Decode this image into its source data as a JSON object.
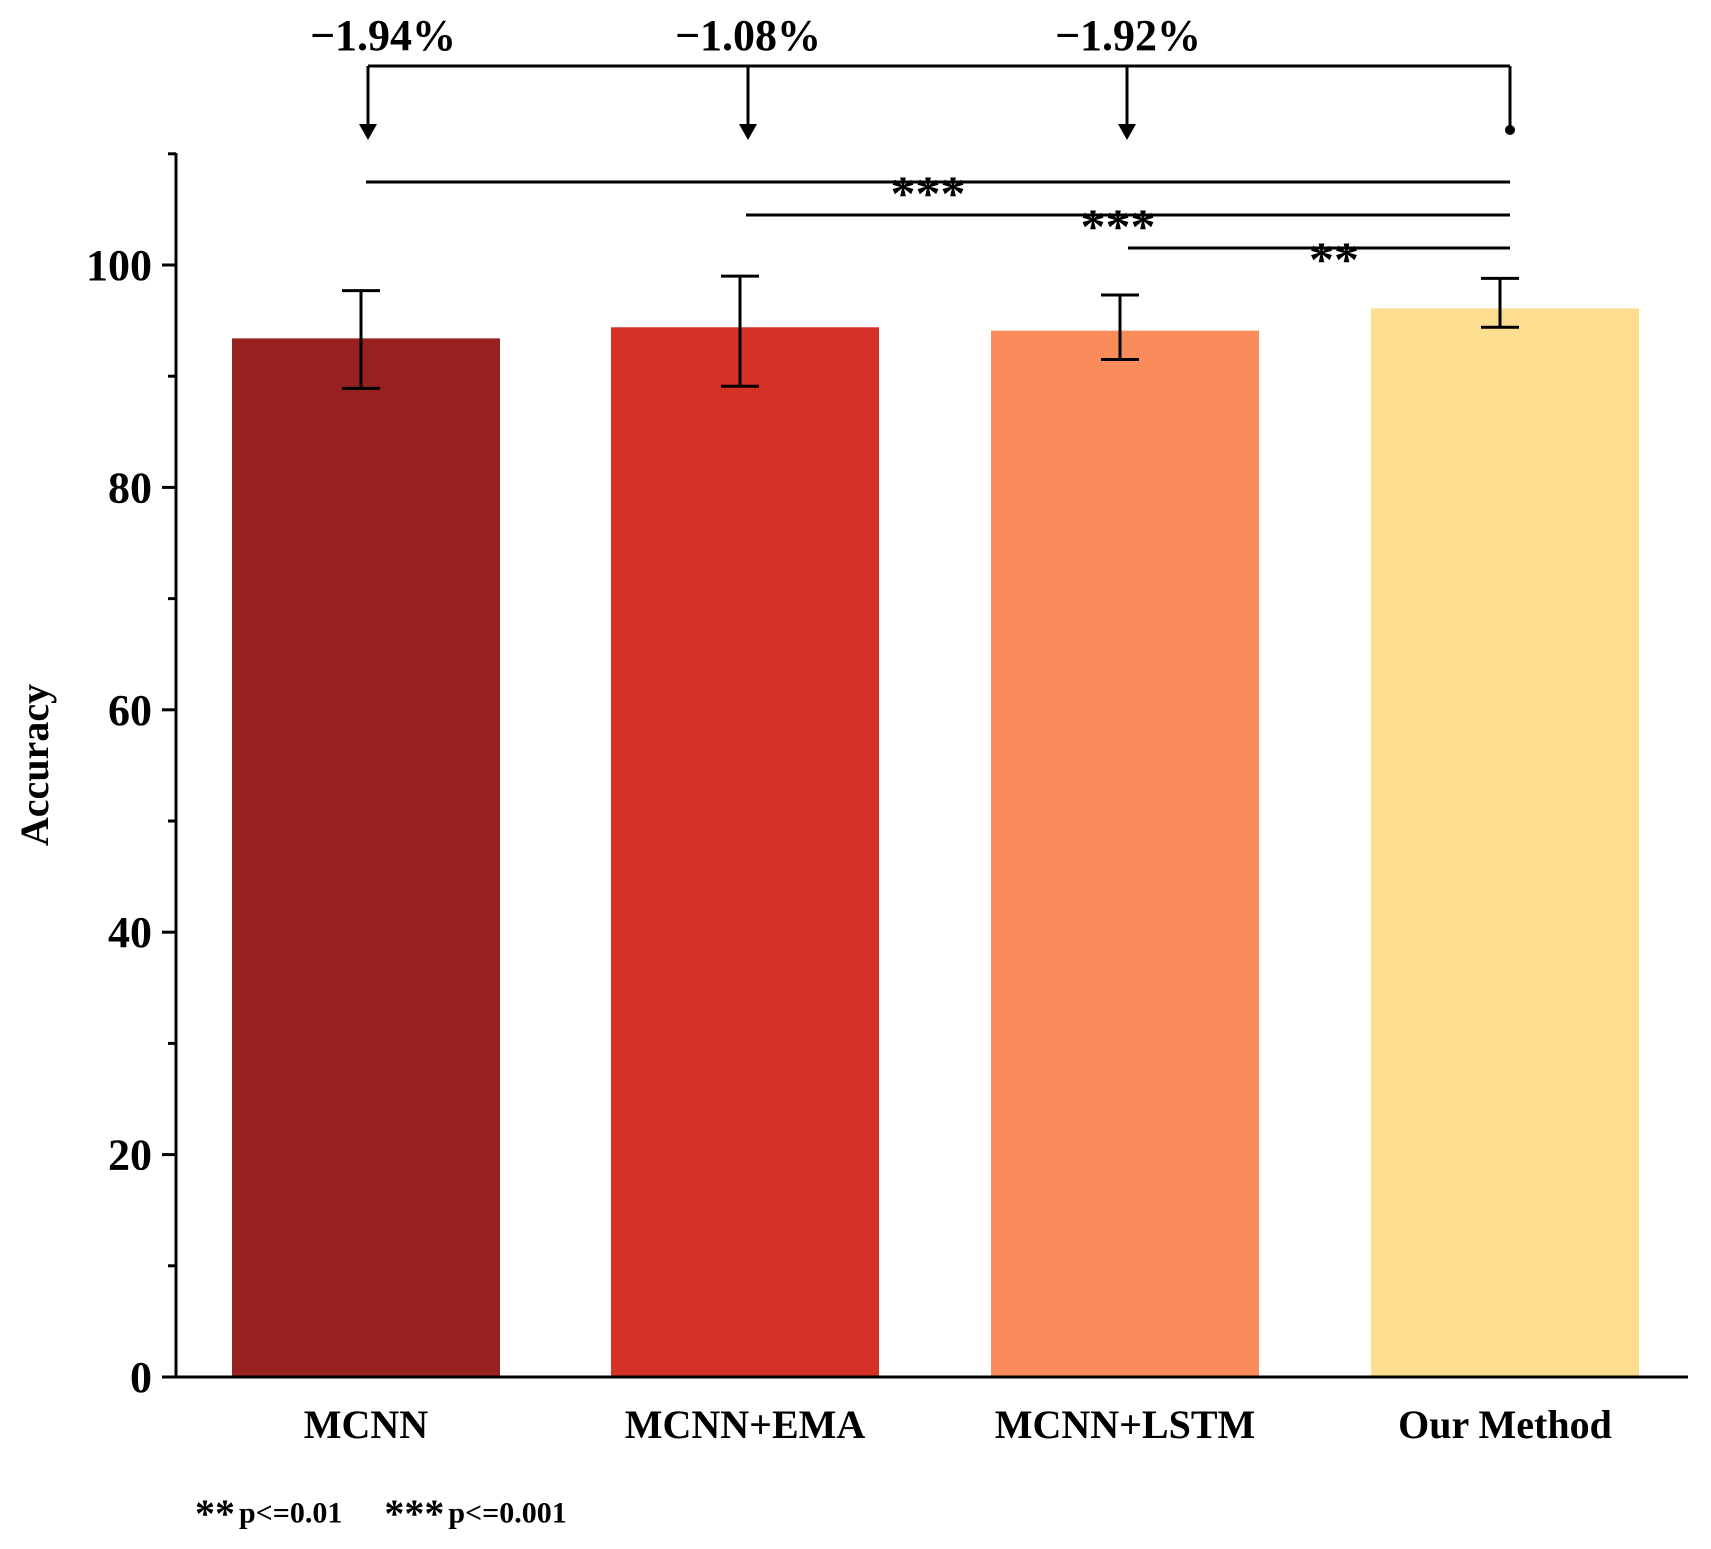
{
  "chart_data": {
    "type": "bar",
    "categories": [
      "MCNN",
      "MCNN+EMA",
      "MCNN+LSTM",
      "Our Method"
    ],
    "values": [
      93.4,
      94.4,
      94.1,
      96.1
    ],
    "errors": [
      {
        "low": 88.9,
        "high": 97.7
      },
      {
        "low": 89.1,
        "high": 99.0
      },
      {
        "low": 91.5,
        "high": 97.3
      },
      {
        "low": 94.4,
        "high": 98.8
      }
    ],
    "colors": [
      "#97211f",
      "#d63127",
      "#fa8c5b",
      "#fddd90"
    ],
    "ylabel": "Accuracy",
    "xlabel": "",
    "title": "",
    "ylim": [
      0,
      110
    ],
    "yticks": [
      "0",
      "20",
      "40",
      "60",
      "80",
      "100"
    ],
    "grid": false,
    "differences": [
      {
        "from": "Our Method",
        "to": "MCNN",
        "label": "−1.94%"
      },
      {
        "from": "Our Method",
        "to": "MCNN+EMA",
        "label": "−1.08%"
      },
      {
        "from": "Our Method",
        "to": "MCNN+LSTM",
        "label": "−1.92%"
      }
    ],
    "significance": [
      {
        "from": "MCNN",
        "to": "Our Method",
        "stars": "***"
      },
      {
        "from": "MCNN+EMA",
        "to": "Our Method",
        "stars": "***"
      },
      {
        "from": "MCNN+LSTM",
        "to": "Our Method",
        "stars": "**"
      }
    ]
  },
  "footnote": {
    "sig2_stars": "**",
    "sig2_text": "p<=0.01",
    "sig3_stars": "***",
    "sig3_text": "p<=0.001"
  }
}
